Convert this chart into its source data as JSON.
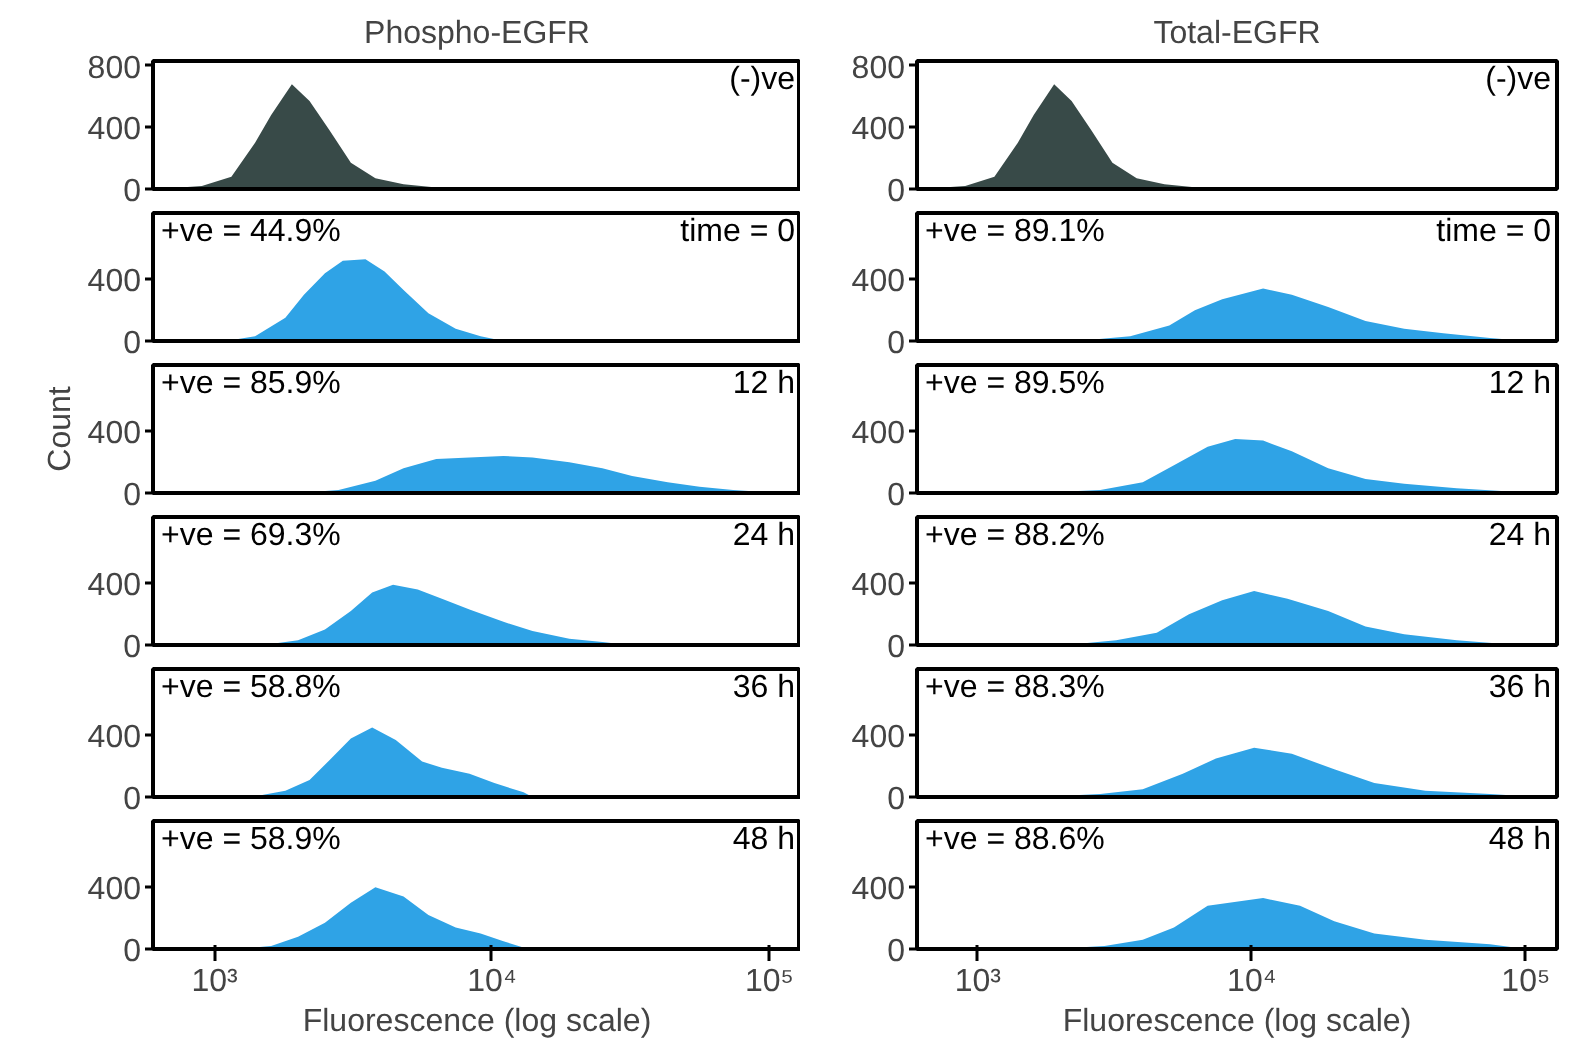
{
  "chart_data": [
    {
      "type": "area",
      "title": "Phospho-EGFR",
      "annotations": [
        "(-)ve"
      ],
      "color": "#384a48",
      "log": "x",
      "xlim": [
        600,
        130000
      ],
      "ylim": [
        0,
        830
      ],
      "yticks": [
        0,
        400,
        800
      ],
      "tick_labels": "y",
      "x": [
        630,
        900,
        1150,
        1400,
        1600,
        1900,
        2200,
        2600,
        3100,
        3800,
        4800,
        6300,
        8300
      ],
      "values": [
        0,
        20,
        80,
        300,
        480,
        680,
        570,
        380,
        170,
        70,
        30,
        10,
        0
      ]
    },
    {
      "type": "area",
      "annotations": [
        "+ve = 44.9%",
        "time = 0"
      ],
      "color": "#2fa3e6",
      "log": "x",
      "xlim": [
        600,
        130000
      ],
      "ylim": [
        0,
        830
      ],
      "yticks": [
        0,
        400
      ],
      "tick_labels": "y",
      "x": [
        1100,
        1400,
        1800,
        2100,
        2500,
        2900,
        3500,
        4100,
        4800,
        5900,
        7400,
        9100,
        11000
      ],
      "values": [
        0,
        30,
        150,
        300,
        440,
        520,
        530,
        450,
        330,
        180,
        80,
        30,
        0
      ]
    },
    {
      "type": "area",
      "annotations": [
        "+ve = 85.9%",
        "12 h"
      ],
      "ylabel": "Count",
      "color": "#2fa3e6",
      "log": "x",
      "xlim": [
        600,
        130000
      ],
      "ylim": [
        0,
        830
      ],
      "yticks": [
        0,
        400
      ],
      "tick_labels": "y",
      "x": [
        2000,
        2800,
        3800,
        4800,
        6300,
        8300,
        11000,
        14000,
        19000,
        25000,
        32000,
        43000,
        56000,
        74000,
        110000
      ],
      "values": [
        0,
        20,
        80,
        160,
        220,
        230,
        240,
        230,
        200,
        160,
        110,
        70,
        40,
        20,
        0
      ]
    },
    {
      "type": "area",
      "annotations": [
        "+ve = 69.3%",
        "24 h"
      ],
      "color": "#2fa3e6",
      "log": "x",
      "xlim": [
        600,
        130000
      ],
      "ylim": [
        0,
        830
      ],
      "yticks": [
        0,
        400
      ],
      "tick_labels": "y",
      "x": [
        1500,
        2000,
        2500,
        3100,
        3700,
        4400,
        5400,
        6600,
        8300,
        11000,
        14000,
        19000,
        25000,
        31000
      ],
      "values": [
        0,
        30,
        100,
        220,
        340,
        390,
        360,
        300,
        230,
        150,
        90,
        40,
        20,
        0
      ]
    },
    {
      "type": "area",
      "annotations": [
        "+ve = 58.8%",
        "36 h"
      ],
      "color": "#2fa3e6",
      "log": "x",
      "xlim": [
        600,
        130000
      ],
      "ylim": [
        0,
        830
      ],
      "yticks": [
        0,
        400
      ],
      "tick_labels": "y",
      "x": [
        1350,
        1800,
        2200,
        2600,
        3100,
        3700,
        4500,
        5600,
        6600,
        8300,
        10200,
        13000,
        14000
      ],
      "values": [
        0,
        40,
        110,
        240,
        380,
        450,
        370,
        230,
        190,
        150,
        90,
        30,
        0
      ]
    },
    {
      "type": "area",
      "annotations": [
        "+ve = 58.9%",
        "48 h"
      ],
      "xlabel": "Fluorescence (log scale)",
      "color": "#2fa3e6",
      "log": "x",
      "xlim": [
        600,
        130000
      ],
      "ylim": [
        0,
        830
      ],
      "yticks": [
        0,
        400
      ],
      "xticks": [
        {
          "value": 1000,
          "label": "10³"
        },
        {
          "value": 10000,
          "label": "10⁴"
        },
        {
          "value": 100000,
          "label": "10⁵"
        }
      ],
      "x": [
        1200,
        1600,
        2000,
        2500,
        3100,
        3800,
        4800,
        5900,
        7400,
        9100,
        11000,
        13500
      ],
      "values": [
        0,
        20,
        80,
        170,
        300,
        400,
        340,
        220,
        140,
        100,
        50,
        0
      ]
    },
    {
      "type": "area",
      "title": "Total-EGFR",
      "annotations": [
        "(-)ve"
      ],
      "color": "#384a48",
      "log": "x",
      "xlim": [
        600,
        130000
      ],
      "ylim": [
        0,
        830
      ],
      "yticks": [
        0,
        400,
        800
      ],
      "tick_labels": "y",
      "x": [
        620,
        900,
        1150,
        1400,
        1600,
        1900,
        2200,
        2600,
        3100,
        3800,
        4800,
        6300,
        8300
      ],
      "values": [
        0,
        20,
        80,
        300,
        480,
        680,
        570,
        380,
        170,
        70,
        30,
        10,
        0
      ]
    },
    {
      "type": "area",
      "annotations": [
        "+ve = 89.1%",
        "time = 0"
      ],
      "color": "#2fa3e6",
      "log": "x",
      "xlim": [
        600,
        130000
      ],
      "ylim": [
        0,
        830
      ],
      "yticks": [
        0,
        400
      ],
      "tick_labels": "y",
      "x": [
        2300,
        3600,
        5000,
        6200,
        7800,
        11000,
        14000,
        19000,
        26000,
        36000,
        50000,
        74000,
        100000
      ],
      "values": [
        0,
        30,
        100,
        200,
        270,
        340,
        300,
        220,
        130,
        80,
        50,
        20,
        0
      ]
    },
    {
      "type": "area",
      "annotations": [
        "+ve = 89.5%",
        "12 h"
      ],
      "color": "#2fa3e6",
      "log": "x",
      "xlim": [
        600,
        130000
      ],
      "ylim": [
        0,
        830
      ],
      "yticks": [
        0,
        400
      ],
      "tick_labels": "y",
      "x": [
        1600,
        2800,
        4000,
        5200,
        6900,
        8700,
        11000,
        14000,
        19000,
        26000,
        36000,
        56000,
        87000,
        120000
      ],
      "values": [
        0,
        20,
        70,
        180,
        300,
        350,
        340,
        270,
        160,
        90,
        60,
        30,
        10,
        0
      ]
    },
    {
      "type": "area",
      "annotations": [
        "+ve = 88.2%",
        "24 h"
      ],
      "color": "#2fa3e6",
      "log": "x",
      "xlim": [
        600,
        130000
      ],
      "ylim": [
        0,
        830
      ],
      "yticks": [
        0,
        400
      ],
      "tick_labels": "y",
      "x": [
        2100,
        3200,
        4500,
        5900,
        7800,
        10200,
        13500,
        19000,
        26000,
        36000,
        56000,
        93000
      ],
      "values": [
        0,
        30,
        80,
        200,
        290,
        350,
        300,
        220,
        120,
        70,
        30,
        0
      ]
    },
    {
      "type": "area",
      "annotations": [
        "+ve = 88.3%",
        "36 h"
      ],
      "color": "#2fa3e6",
      "log": "x",
      "xlim": [
        600,
        130000
      ],
      "ylim": [
        0,
        830
      ],
      "yticks": [
        0,
        400
      ],
      "tick_labels": "y",
      "x": [
        1650,
        2800,
        4000,
        5600,
        7400,
        10200,
        14000,
        20000,
        28000,
        43000,
        74000,
        110000
      ],
      "values": [
        0,
        20,
        50,
        150,
        250,
        320,
        280,
        180,
        90,
        40,
        20,
        0
      ]
    },
    {
      "type": "area",
      "annotations": [
        "+ve = 88.6%",
        "48 h"
      ],
      "xlabel": "Fluorescence (log scale)",
      "color": "#2fa3e6",
      "log": "x",
      "xlim": [
        600,
        130000
      ],
      "ylim": [
        0,
        830
      ],
      "yticks": [
        0,
        400
      ],
      "xticks": [
        {
          "value": 1000,
          "label": "10³"
        },
        {
          "value": 10000,
          "label": "10⁴"
        },
        {
          "value": 100000,
          "label": "10⁵"
        }
      ],
      "x": [
        1850,
        2900,
        4000,
        5200,
        6900,
        11000,
        15000,
        20000,
        28000,
        43000,
        74000,
        100000
      ],
      "values": [
        0,
        20,
        60,
        140,
        280,
        330,
        280,
        180,
        100,
        60,
        30,
        0
      ]
    }
  ]
}
